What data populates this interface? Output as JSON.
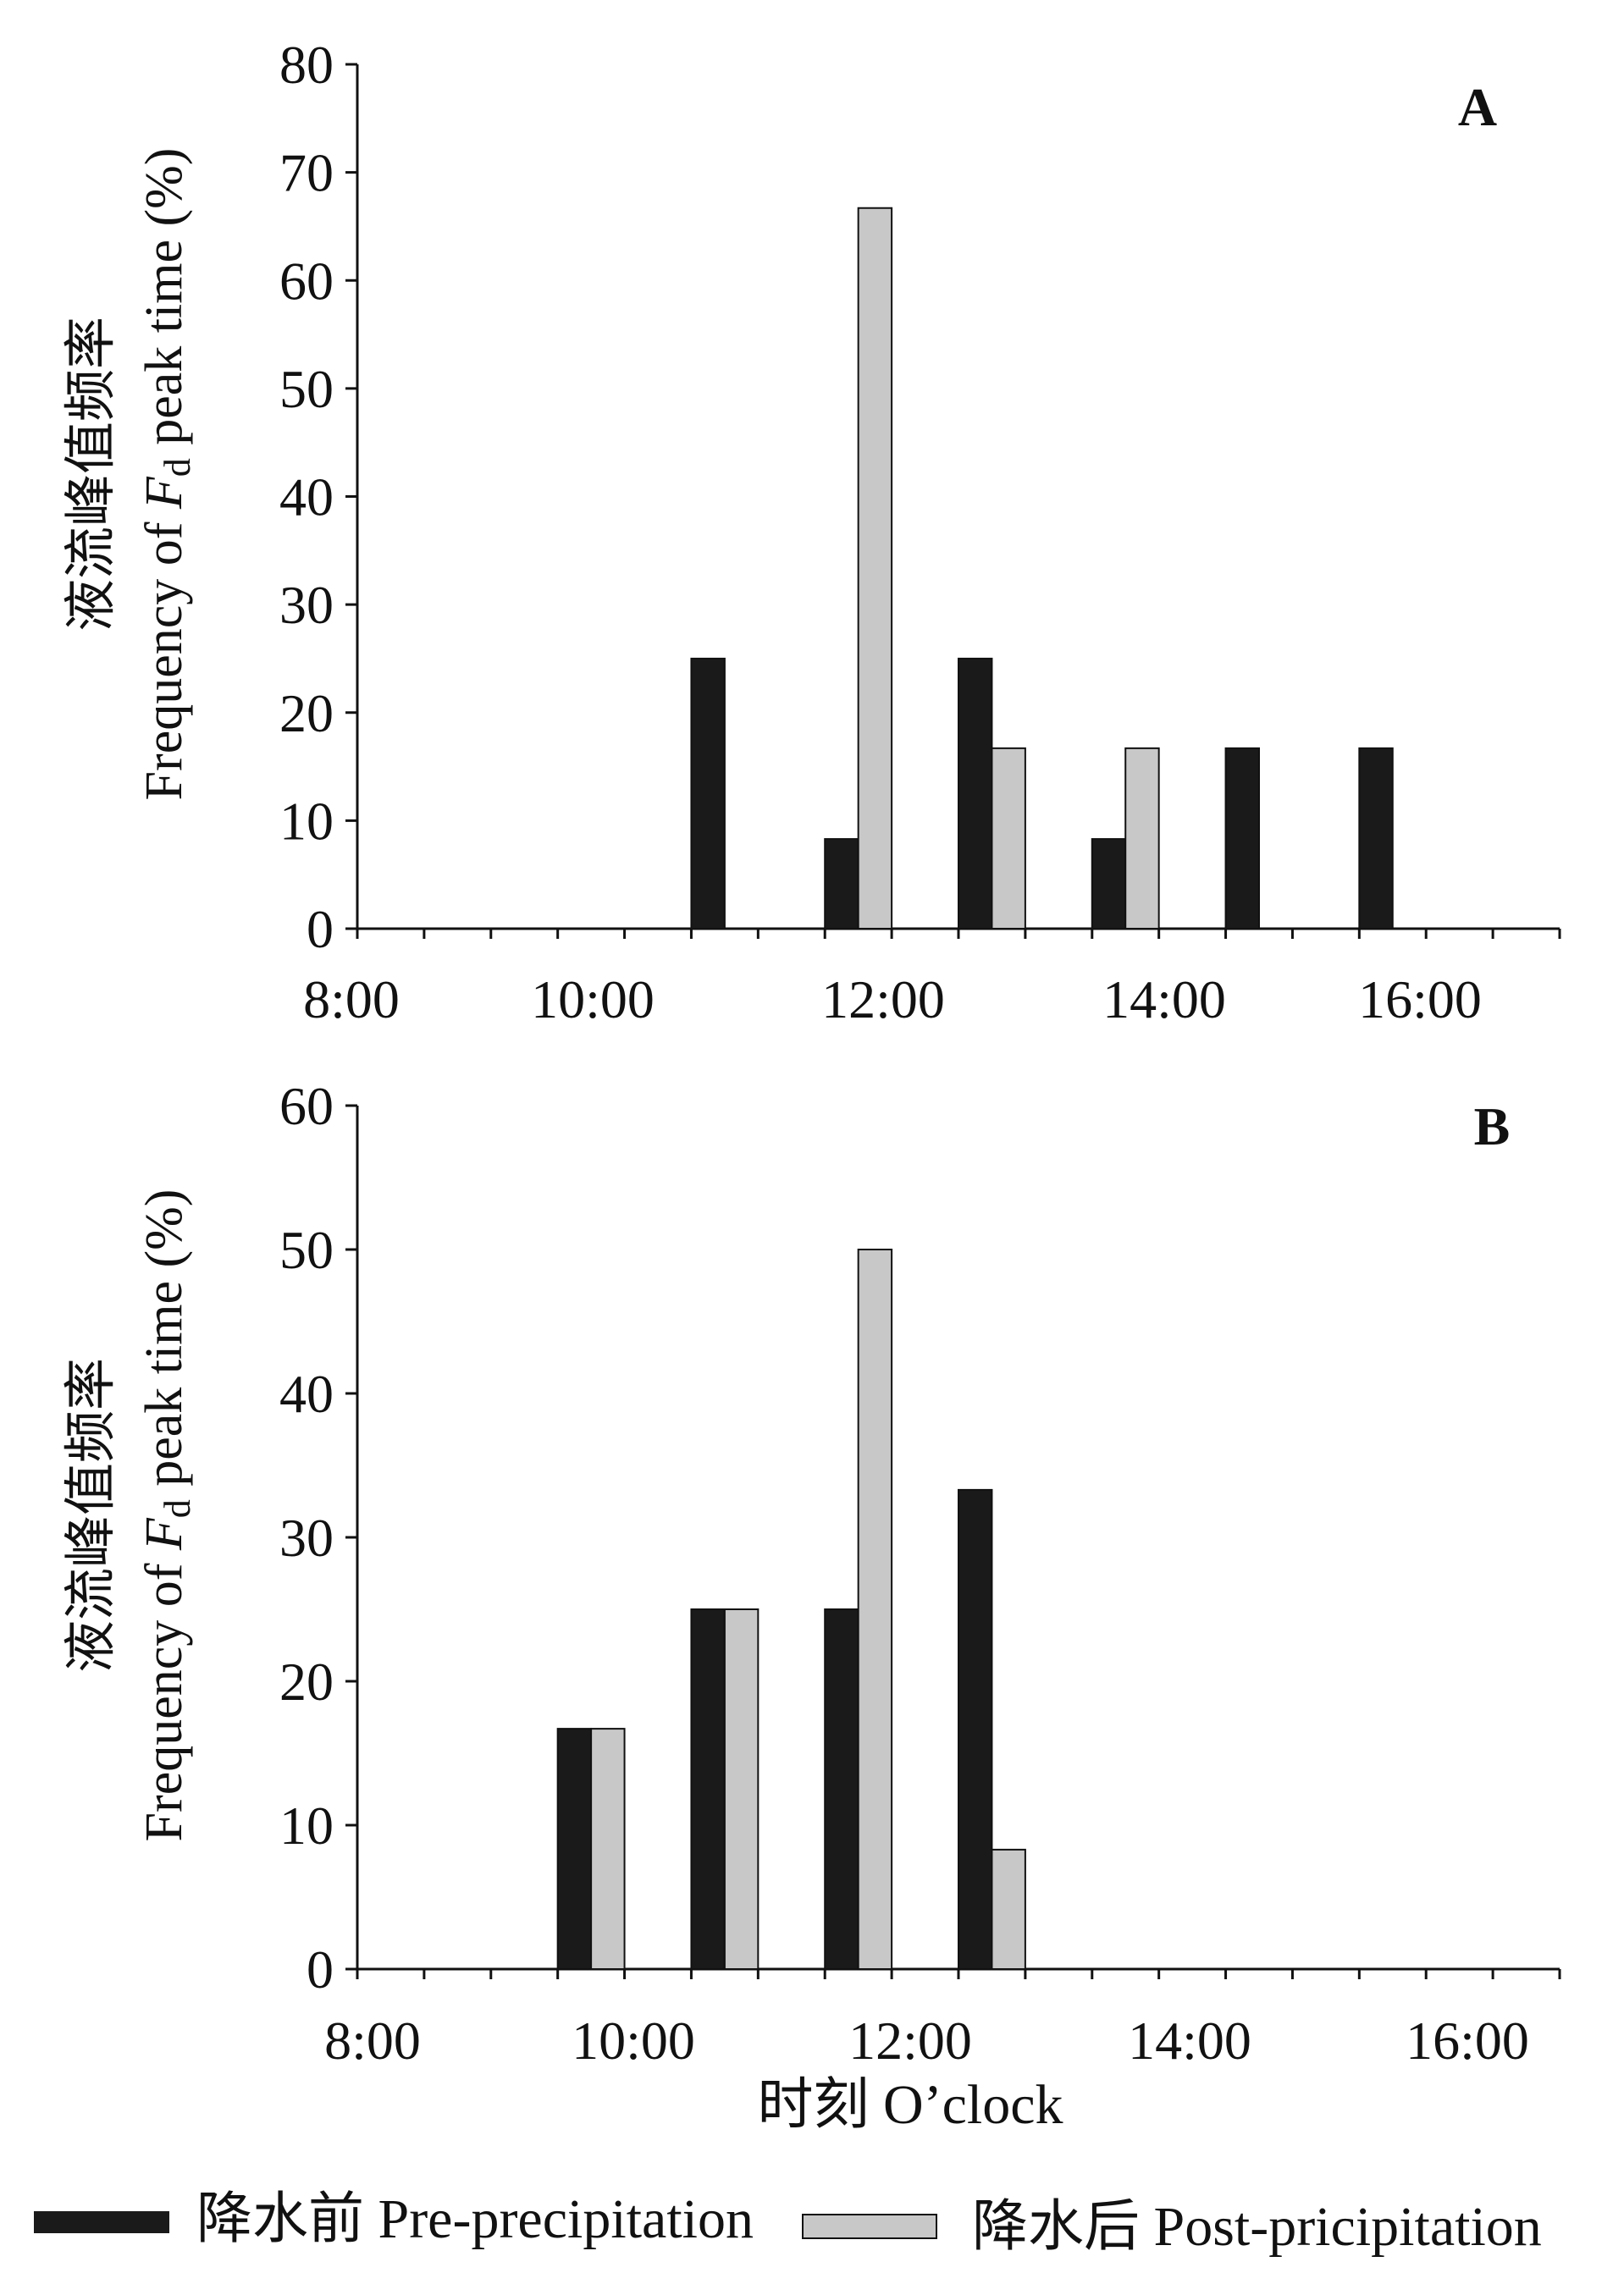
{
  "chart_data": [
    {
      "type": "bar",
      "panel": "A",
      "ylabel_cn": "液流峰值频率",
      "ylabel_en_prefix": "Frequency of ",
      "ylabel_en_var": "F",
      "ylabel_en_sub": "d",
      "ylabel_en_suffix": " peak time (%)",
      "ylim": [
        0,
        80
      ],
      "yticks": [
        0,
        10,
        20,
        30,
        40,
        50,
        60,
        70,
        80
      ],
      "xlim": [
        8,
        17
      ],
      "xticks": [
        8,
        10,
        12,
        14,
        16
      ],
      "xtick_labels": [
        "8:00",
        "10:00",
        "12:00",
        "14:00",
        "16:00"
      ],
      "hours": [
        9,
        10,
        11,
        12,
        13,
        14,
        15,
        16
      ],
      "series": [
        {
          "name": "降水前 Pre-precipitation",
          "values": [
            0,
            0,
            25,
            8.3,
            25,
            8.3,
            16.7,
            16.7
          ]
        },
        {
          "name": "降水后 Post-pricipitation",
          "values": [
            0,
            0,
            0,
            66.7,
            16.7,
            16.7,
            0,
            0
          ]
        }
      ]
    },
    {
      "type": "bar",
      "panel": "B",
      "ylabel_cn": "液流峰值频率",
      "ylabel_en_prefix": "Frequency of ",
      "ylabel_en_var": "F",
      "ylabel_en_sub": "d",
      "ylabel_en_suffix": " peak time (%)",
      "ylim": [
        0,
        60
      ],
      "yticks": [
        0,
        10,
        20,
        30,
        40,
        50,
        60
      ],
      "xlim": [
        8,
        17
      ],
      "xticks": [
        8,
        10,
        12,
        14,
        16
      ],
      "xtick_labels": [
        "8:00",
        "10:00",
        "12:00",
        "14:00",
        "16:00"
      ],
      "hours": [
        9,
        10,
        11,
        12,
        13,
        14,
        15,
        16
      ],
      "series": [
        {
          "name": "降水前 Pre-precipitation",
          "values": [
            0,
            16.7,
            25,
            25,
            33.3,
            0,
            0,
            0
          ]
        },
        {
          "name": "降水后 Post-pricipitation",
          "values": [
            0,
            16.7,
            25,
            50,
            8.3,
            0,
            0,
            0
          ]
        }
      ]
    }
  ],
  "xlabel": "时刻 O’clock",
  "legend": [
    {
      "label": "降水前 Pre-precipitation",
      "color": "#1a1a1a"
    },
    {
      "label": "降水后 Post-pricipitation",
      "color": "#c8c8c8"
    }
  ],
  "colors": {
    "pre": "#1a1a1a",
    "post": "#c8c8c8",
    "axis": "#111111"
  }
}
